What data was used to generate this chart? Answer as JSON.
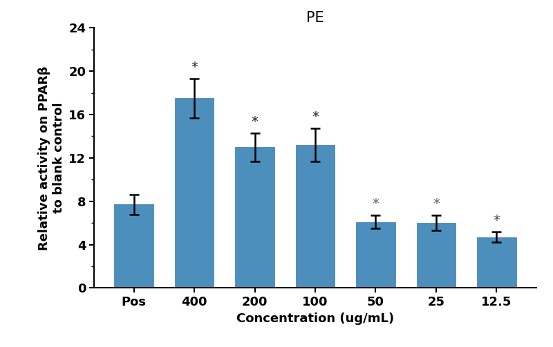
{
  "categories": [
    "Pos",
    "400",
    "200",
    "100",
    "50",
    "25",
    "12.5"
  ],
  "values": [
    7.7,
    17.5,
    13.0,
    13.2,
    6.1,
    6.0,
    4.7
  ],
  "errors": [
    0.9,
    1.8,
    1.3,
    1.5,
    0.6,
    0.7,
    0.5
  ],
  "bar_color": "#4C8FBD",
  "edge_color": "#3A7AAD",
  "title": "PE",
  "xlabel": "Concentration (ug/mL)",
  "ylabel": "Relative activity on PPARβ\nto blank control",
  "ylim": [
    0,
    24
  ],
  "yticks": [
    0,
    4,
    8,
    12,
    16,
    20,
    24
  ],
  "title_fontsize": 15,
  "label_fontsize": 13,
  "tick_fontsize": 13,
  "bar_width": 0.65,
  "asterisk_indices": [
    1,
    2,
    3,
    4,
    5,
    6
  ],
  "asterisk_colors": [
    "#222222",
    "#222222",
    "#222222",
    "#666666",
    "#666666",
    "#444444"
  ],
  "background_color": "#ffffff"
}
